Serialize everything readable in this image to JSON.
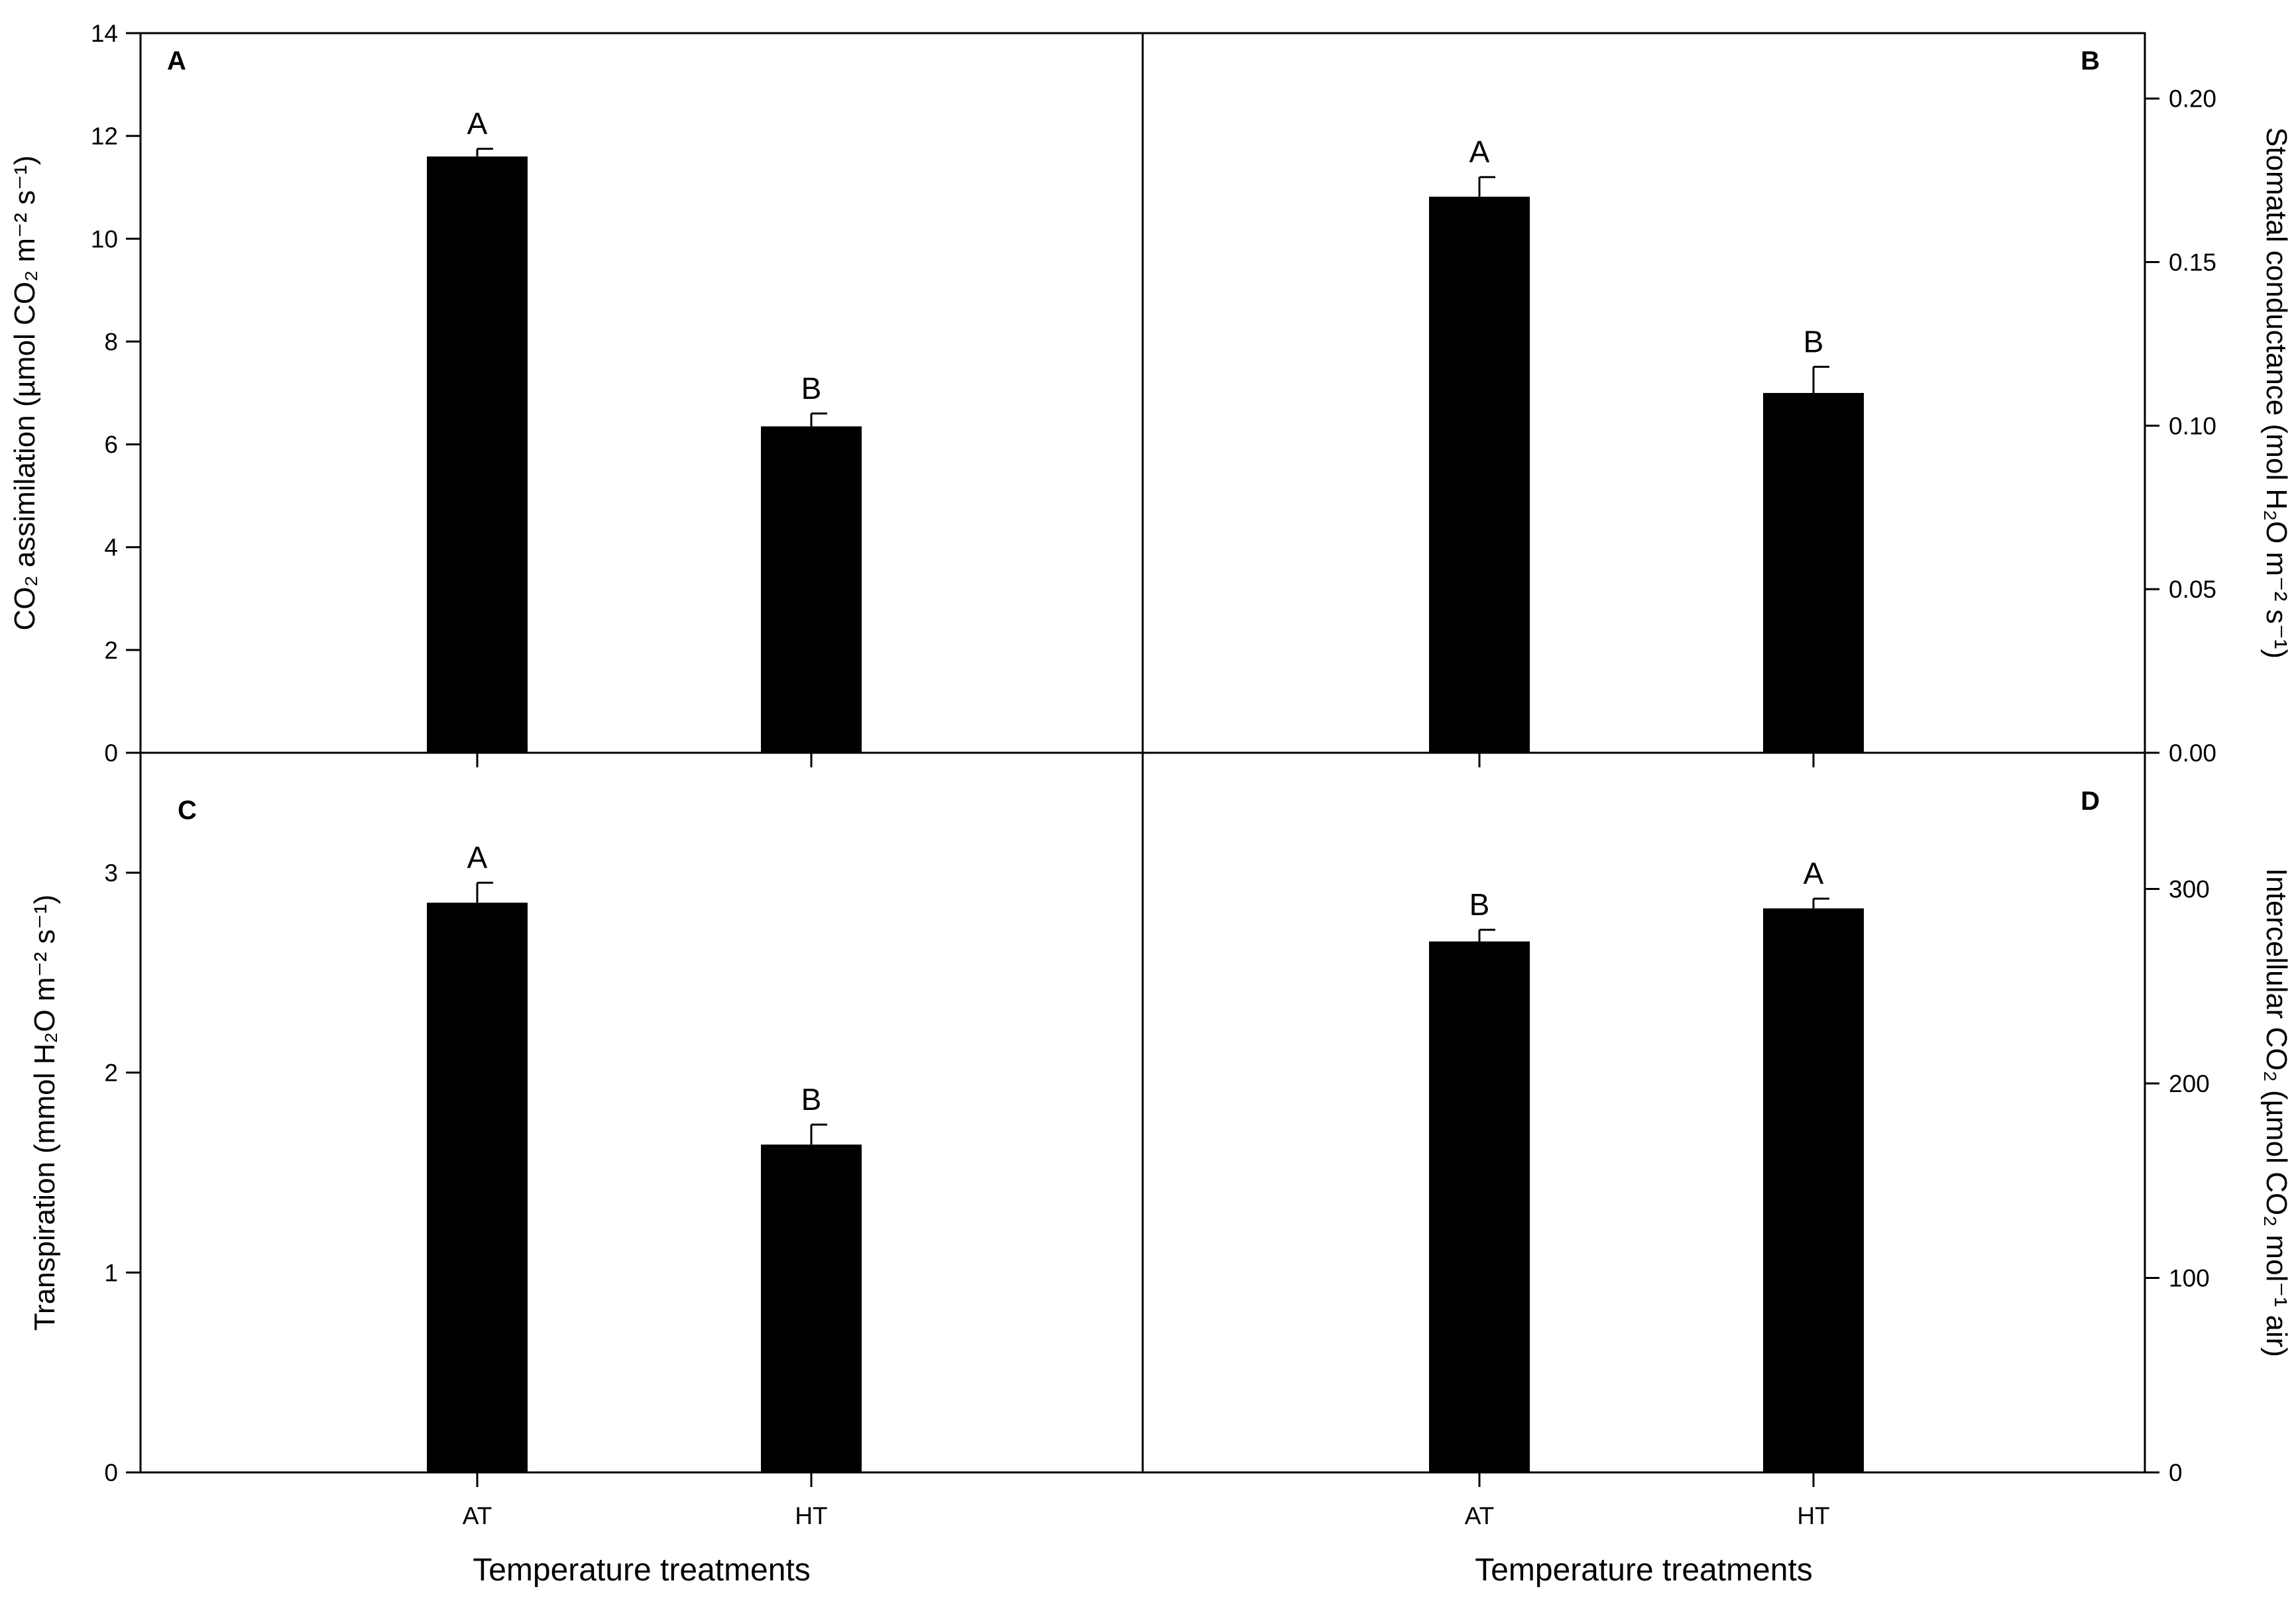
{
  "chart_data": [
    {
      "type": "bar",
      "panel_label": "A",
      "categories": [
        "AT",
        "HT"
      ],
      "values": [
        11.6,
        6.35
      ],
      "errors": [
        0.15,
        0.25
      ],
      "letters": [
        "A",
        "B"
      ],
      "ylabel": "CO₂ assimilation (µmol CO₂ m⁻² s⁻¹)",
      "ylim": [
        0,
        14
      ],
      "yticks": [
        "0",
        "2",
        "4",
        "6",
        "8",
        "10",
        "12",
        "14"
      ],
      "yaxis_side": "left",
      "grid": false
    },
    {
      "type": "bar",
      "panel_label": "B",
      "categories": [
        "AT",
        "HT"
      ],
      "values": [
        0.17,
        0.11
      ],
      "errors": [
        0.006,
        0.008
      ],
      "letters": [
        "A",
        "B"
      ],
      "ylabel": "Stomatal conductance (mol H₂O m⁻² s⁻¹)",
      "ylim": [
        0,
        0.22
      ],
      "yticks": [
        "0.00",
        "0.05",
        "0.10",
        "0.15",
        "0.20"
      ],
      "yaxis_side": "right",
      "grid": false
    },
    {
      "type": "bar",
      "panel_label": "C",
      "categories": [
        "AT",
        "HT"
      ],
      "values": [
        2.85,
        1.64
      ],
      "errors": [
        0.1,
        0.1
      ],
      "letters": [
        "A",
        "B"
      ],
      "ylabel": "Transpiration (mmol H₂O m⁻² s⁻¹)",
      "ylim": [
        0,
        3.6
      ],
      "yticks": [
        "0",
        "1",
        "2",
        "3"
      ],
      "yaxis_side": "left",
      "xlabel": "Temperature treatments",
      "grid": false
    },
    {
      "type": "bar",
      "panel_label": "D",
      "categories": [
        "AT",
        "HT"
      ],
      "values": [
        273,
        290
      ],
      "errors": [
        6,
        5
      ],
      "letters": [
        "B",
        "A"
      ],
      "ylabel": "Intercellular CO₂ (µmol CO₂ mol⁻¹ air)",
      "ylim": [
        0,
        370
      ],
      "yticks": [
        "0",
        "100",
        "200",
        "300"
      ],
      "yaxis_side": "right",
      "xlabel": "Temperature treatments",
      "grid": false
    }
  ]
}
